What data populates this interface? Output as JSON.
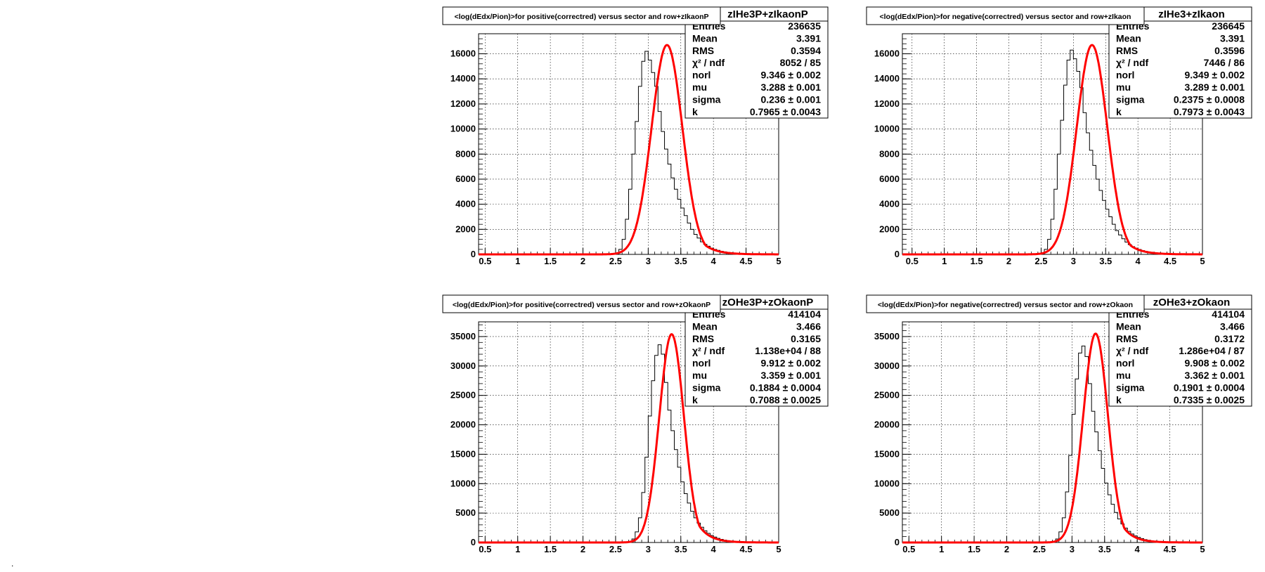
{
  "chart_data": [
    {
      "type": "histogram-with-fit",
      "title": "<log(dEdx/Pion)>for positive(correctred) versus sector and row+zIkaonP",
      "stats_name": "zIHe3P+zIkaonP",
      "xlim": [
        0.4,
        5.0
      ],
      "ylim": [
        0,
        17600
      ],
      "x_ticks": [
        "0.5",
        "1",
        "1.5",
        "2",
        "2.5",
        "3",
        "3.5",
        "4",
        "4.5",
        "5"
      ],
      "y_ticks": [
        "0",
        "2000",
        "4000",
        "6000",
        "8000",
        "10000",
        "12000",
        "14000",
        "16000"
      ],
      "grid": true,
      "stats": [
        {
          "label": "Entries",
          "value": "236635"
        },
        {
          "label": "Mean",
          "value": "3.391"
        },
        {
          "label": "RMS",
          "value": "0.3594"
        },
        {
          "label": "χ² / ndf",
          "value": "8052 / 85"
        },
        {
          "label": "norl",
          "value": "9.346 ± 0.002"
        },
        {
          "label": "mu",
          "value": "3.288 ± 0.001"
        },
        {
          "label": "sigma",
          "value": "0.236 ± 0.001"
        },
        {
          "label": "k",
          "value": "0.7965 ± 0.0043"
        }
      ],
      "fit": {
        "mu": 3.288,
        "sigma": 0.236,
        "k": 0.7965,
        "peak": 16700
      },
      "hist": {
        "x_start": 2.55,
        "bin_width": 0.05,
        "values": [
          400,
          1200,
          2800,
          5200,
          8000,
          10600,
          13400,
          15400,
          16200,
          15500,
          14500,
          13400,
          11400,
          9800,
          8400,
          7200,
          6100,
          5200,
          4400,
          3700,
          3100,
          2500,
          2000,
          1600,
          1300,
          1000,
          800,
          650,
          500,
          400,
          320,
          250,
          200,
          160,
          120,
          100,
          80,
          60,
          50,
          40,
          30,
          25,
          20,
          15,
          12,
          10,
          8,
          6,
          5
        ]
      }
    },
    {
      "type": "histogram-with-fit",
      "title": "<log(dEdx/Pion)>for negative(correctred) versus sector and row+zIkaon",
      "stats_name": "zIHe3+zIkaon",
      "xlim": [
        0.35,
        5.0
      ],
      "ylim": [
        0,
        17600
      ],
      "x_ticks": [
        "0.5",
        "1",
        "1.5",
        "2",
        "2.5",
        "3",
        "3.5",
        "4",
        "4.5",
        "5"
      ],
      "y_ticks": [
        "0",
        "2000",
        "4000",
        "6000",
        "8000",
        "10000",
        "12000",
        "14000",
        "16000"
      ],
      "grid": true,
      "stats": [
        {
          "label": "Entries",
          "value": "236645"
        },
        {
          "label": "Mean",
          "value": "3.391"
        },
        {
          "label": "RMS",
          "value": "0.3596"
        },
        {
          "label": "χ² / ndf",
          "value": "7446 / 86"
        },
        {
          "label": "norl",
          "value": "9.349 ± 0.002"
        },
        {
          "label": "mu",
          "value": "3.289 ± 0.001"
        },
        {
          "label": "sigma",
          "value": "0.2375 ± 0.0008"
        },
        {
          "label": "k",
          "value": "0.7973 ± 0.0043"
        }
      ],
      "fit": {
        "mu": 3.289,
        "sigma": 0.2375,
        "k": 0.7973,
        "peak": 16700
      },
      "hist": {
        "x_start": 2.55,
        "bin_width": 0.05,
        "values": [
          400,
          1200,
          2800,
          5200,
          8000,
          10700,
          13500,
          15500,
          16300,
          15600,
          14600,
          13300,
          11300,
          9700,
          8300,
          7100,
          6000,
          5100,
          4300,
          3600,
          3000,
          2400,
          1900,
          1550,
          1250,
          980,
          780,
          620,
          490,
          390,
          310,
          240,
          190,
          150,
          120,
          95,
          75,
          60,
          48,
          38,
          30,
          24,
          18,
          14,
          11,
          9,
          7,
          5,
          4
        ]
      }
    },
    {
      "type": "histogram-with-fit",
      "title": "<log(dEdx/Pion)>for positive(correctred) versus sector and row+zOkaonP",
      "stats_name": "zOHe3P+zOkaonP",
      "xlim": [
        0.4,
        5.0
      ],
      "ylim": [
        0,
        37500
      ],
      "x_ticks": [
        "0.5",
        "1",
        "1.5",
        "2",
        "2.5",
        "3",
        "3.5",
        "4",
        "4.5",
        "5"
      ],
      "y_ticks": [
        "0",
        "5000",
        "10000",
        "15000",
        "20000",
        "25000",
        "30000",
        "35000"
      ],
      "grid": true,
      "stats": [
        {
          "label": "Entries",
          "value": "414104"
        },
        {
          "label": "Mean",
          "value": "3.466"
        },
        {
          "label": "RMS",
          "value": "0.3165"
        },
        {
          "label": "χ² / ndf",
          "value": "1.138e+04 / 88"
        },
        {
          "label": "norl",
          "value": "9.912 ± 0.002"
        },
        {
          "label": "mu",
          "value": "3.359 ± 0.001"
        },
        {
          "label": "sigma",
          "value": "0.1884 ± 0.0004"
        },
        {
          "label": "k",
          "value": "0.7088 ± 0.0025"
        }
      ],
      "fit": {
        "mu": 3.359,
        "sigma": 0.1884,
        "k": 0.7088,
        "peak": 35400
      },
      "hist": {
        "x_start": 2.75,
        "bin_width": 0.05,
        "values": [
          600,
          1800,
          4200,
          8500,
          14500,
          21500,
          27500,
          31800,
          33600,
          32000,
          27200,
          22500,
          19000,
          15800,
          12800,
          10300,
          8300,
          6700,
          5300,
          4200,
          3300,
          2600,
          2000,
          1550,
          1200,
          920,
          700,
          540,
          410,
          310,
          240,
          180,
          140,
          100,
          80,
          60,
          45
        ]
      }
    },
    {
      "type": "histogram-with-fit",
      "title": "<log(dEdx/Pion)>for negative(correctred) versus sector and row+zOkaon",
      "stats_name": "zOHe3+zOkaon",
      "xlim": [
        0.4,
        5.0
      ],
      "ylim": [
        0,
        37500
      ],
      "x_ticks": [
        "0.5",
        "1",
        "1.5",
        "2",
        "2.5",
        "3",
        "3.5",
        "4",
        "4.5",
        "5"
      ],
      "y_ticks": [
        "0",
        "5000",
        "10000",
        "15000",
        "20000",
        "25000",
        "30000",
        "35000"
      ],
      "grid": true,
      "stats": [
        {
          "label": "Entries",
          "value": "414104"
        },
        {
          "label": "Mean",
          "value": "3.466"
        },
        {
          "label": "RMS",
          "value": "0.3172"
        },
        {
          "label": "χ² / ndf",
          "value": "1.286e+04 / 87"
        },
        {
          "label": "norl",
          "value": "9.908 ± 0.002"
        },
        {
          "label": "mu",
          "value": "3.362 ± 0.001"
        },
        {
          "label": "sigma",
          "value": "0.1901 ± 0.0004"
        },
        {
          "label": "k",
          "value": "0.7335 ± 0.0025"
        }
      ],
      "fit": {
        "mu": 3.362,
        "sigma": 0.1901,
        "k": 0.7335,
        "peak": 35500
      },
      "hist": {
        "x_start": 2.75,
        "bin_width": 0.05,
        "values": [
          600,
          1800,
          4200,
          8600,
          14800,
          21800,
          27800,
          32200,
          33400,
          31600,
          27000,
          22300,
          18800,
          15600,
          12600,
          10100,
          8100,
          6500,
          5100,
          4000,
          3150,
          2450,
          1900,
          1450,
          1120,
          860,
          660,
          500,
          380,
          290,
          220,
          170,
          130,
          95,
          75,
          55,
          42
        ]
      }
    }
  ],
  "stray_marks": {
    "mark": "."
  }
}
